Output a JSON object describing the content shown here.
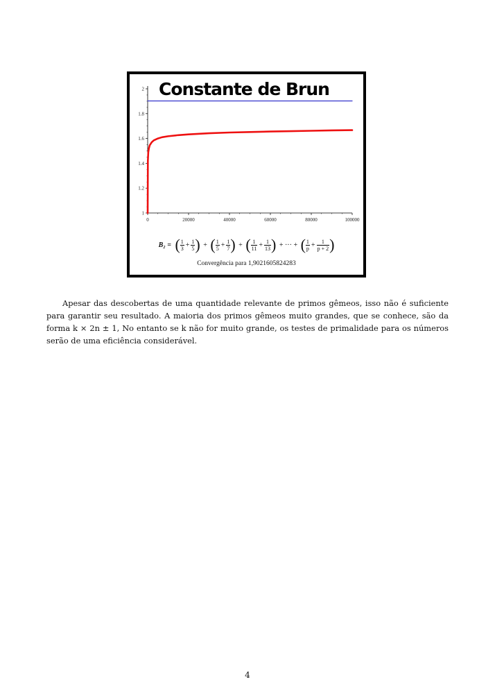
{
  "figure": {
    "caption": "Convergência para 1,9021605824283",
    "formula": {
      "lhs": "B₂ =",
      "pairs": [
        {
          "a_num": "1",
          "a_den": "3",
          "b_num": "1",
          "b_den": "5"
        },
        {
          "a_num": "1",
          "a_den": "5",
          "b_num": "1",
          "b_den": "7"
        },
        {
          "a_num": "1",
          "a_den": "11",
          "b_num": "1",
          "b_den": "13"
        }
      ],
      "plus": "+",
      "ellipsis": "+ ··· +",
      "last": {
        "a_num": "1",
        "a_den": "p",
        "b_num": "1",
        "b_den": "p + 2"
      }
    }
  },
  "chart_data": {
    "type": "line",
    "title": "Constante de Brun",
    "xlabel": "",
    "ylabel": "",
    "xlim": [
      0,
      100000
    ],
    "ylim": [
      1,
      2
    ],
    "x_ticks": [
      "0",
      "20000",
      "40000",
      "60000",
      "80000",
      "100000"
    ],
    "y_ticks": [
      "1",
      "1.2",
      "1.4",
      "1.6",
      "1.8",
      "2"
    ],
    "grid": false,
    "series": [
      {
        "color": "#ee1111",
        "x": [
          0,
          100,
          300,
          600,
          1000,
          2000,
          3000,
          5000,
          7000,
          10000,
          15000,
          20000,
          30000,
          40000,
          50000,
          60000,
          70000,
          80000,
          90000,
          100000
        ],
        "y": [
          1.0,
          1.42,
          1.49,
          1.52,
          1.545,
          1.57,
          1.585,
          1.6,
          1.61,
          1.618,
          1.627,
          1.633,
          1.642,
          1.648,
          1.652,
          1.656,
          1.659,
          1.662,
          1.665,
          1.667
        ]
      },
      {
        "color": "#3333cc",
        "x": [
          0,
          100000
        ],
        "y": [
          1.9021605824283,
          1.9021605824283
        ]
      }
    ]
  },
  "body": {
    "paragraph": "Apesar das descobertas de uma quantidade relevante de primos gêmeos, isso não é suficiente para garantir seu resultado. A maioria dos primos gêmeos muito grandes, que se conhece, são da forma k × 2n ± 1, No entanto se k não for muito grande, os testes de primalidade para os números serão de uma eficiência considerável.",
    "page_number": "4"
  }
}
